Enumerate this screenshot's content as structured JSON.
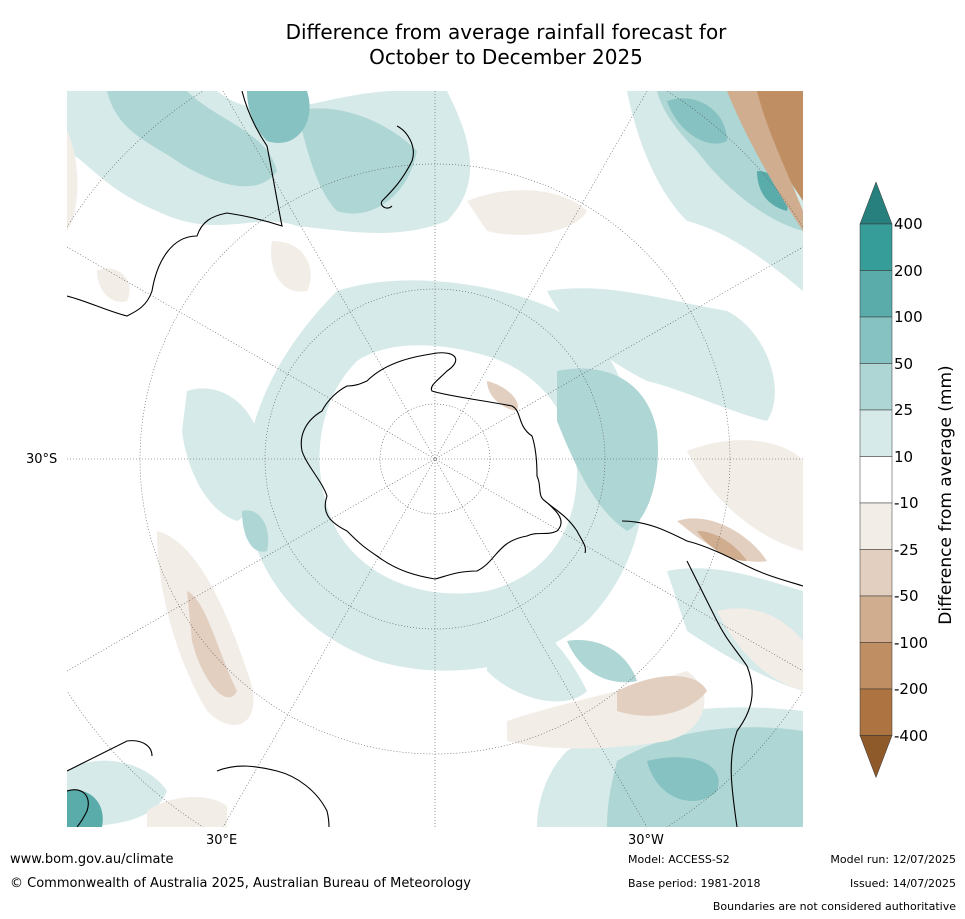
{
  "title": {
    "line1": "Difference from average rainfall forecast for",
    "line2": "October to December 2025"
  },
  "map": {
    "projection": "south-polar-stereographic",
    "labels": {
      "lat_30s": "30°S",
      "lon_30e": "30°E",
      "lon_30w": "30°W"
    }
  },
  "legend": {
    "title": "Difference from average (mm)",
    "ticks": [
      "400",
      "200",
      "100",
      "50",
      "25",
      "10",
      "-10",
      "-25",
      "-50",
      "-100",
      "-200",
      "-400"
    ],
    "colors": [
      "#27807d",
      "#379d99",
      "#5aacaa",
      "#85c2c1",
      "#aed6d5",
      "#d6eae9",
      "#ffffff",
      "#f2ede7",
      "#e3cfc0",
      "#d0ad8f",
      "#bf8e63",
      "#ad7442",
      "#8e5a2a"
    ]
  },
  "footer": {
    "url": "www.bom.gov.au/climate",
    "copyright": "© Commonwealth of Australia 2025, Australian Bureau of Meteorology",
    "model": "Model: ACCESS-S2",
    "base_period": "Base period: 1981-2018",
    "model_run": "Model run: 12/07/2025",
    "issued": "Issued: 14/07/2025",
    "disclaimer": "Boundaries are not considered authoritative"
  }
}
